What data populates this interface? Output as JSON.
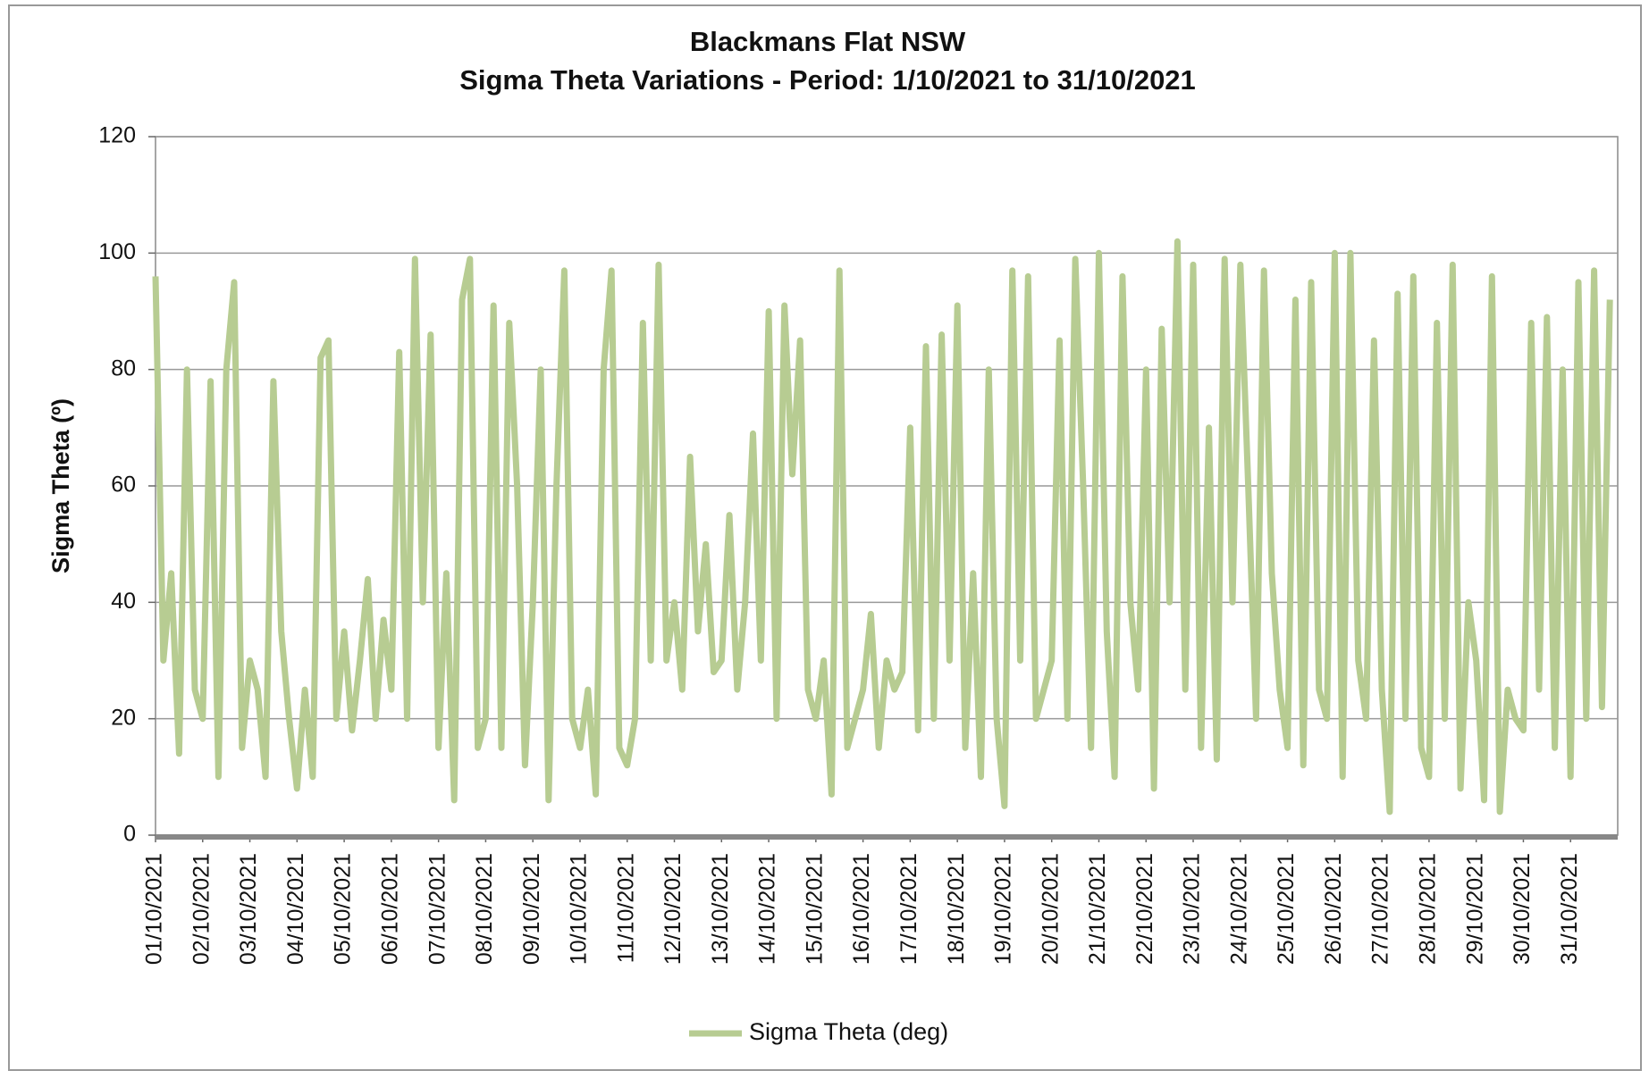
{
  "chart_data": {
    "type": "line",
    "title": "Blackmans Flat NSW",
    "subtitle": "Sigma Theta Variations - Period: 1/10/2021 to 31/10/2021",
    "y_label": "Sigma Theta (º)",
    "categories": [
      "01/10/2021",
      null,
      null,
      null,
      null,
      null,
      "02/10/2021",
      null,
      null,
      null,
      null,
      null,
      "03/10/2021",
      null,
      null,
      null,
      null,
      null,
      "04/10/2021",
      null,
      null,
      null,
      null,
      null,
      "05/10/2021",
      null,
      null,
      null,
      null,
      null,
      "06/10/2021",
      null,
      null,
      null,
      null,
      null,
      "07/10/2021",
      null,
      null,
      null,
      null,
      null,
      "08/10/2021",
      null,
      null,
      null,
      null,
      null,
      "09/10/2021",
      null,
      null,
      null,
      null,
      null,
      "10/10/2021",
      null,
      null,
      null,
      null,
      null,
      "11/10/2021",
      null,
      null,
      null,
      null,
      null,
      "12/10/2021",
      null,
      null,
      null,
      null,
      null,
      "13/10/2021",
      null,
      null,
      null,
      null,
      null,
      "14/10/2021",
      null,
      null,
      null,
      null,
      null,
      "15/10/2021",
      null,
      null,
      null,
      null,
      null,
      "16/10/2021",
      null,
      null,
      null,
      null,
      null,
      "17/10/2021",
      null,
      null,
      null,
      null,
      null,
      "18/10/2021",
      null,
      null,
      null,
      null,
      null,
      "19/10/2021",
      null,
      null,
      null,
      null,
      null,
      "20/10/2021",
      null,
      null,
      null,
      null,
      null,
      "21/10/2021",
      null,
      null,
      null,
      null,
      null,
      "22/10/2021",
      null,
      null,
      null,
      null,
      null,
      "23/10/2021",
      null,
      null,
      null,
      null,
      null,
      "24/10/2021",
      null,
      null,
      null,
      null,
      null,
      "25/10/2021",
      null,
      null,
      null,
      null,
      null,
      "26/10/2021",
      null,
      null,
      null,
      null,
      null,
      "27/10/2021",
      null,
      null,
      null,
      null,
      null,
      "28/10/2021",
      null,
      null,
      null,
      null,
      null,
      "29/10/2021",
      null,
      null,
      null,
      null,
      null,
      "30/10/2021",
      null,
      null,
      null,
      null,
      null,
      "31/10/2021",
      null,
      null,
      null,
      null,
      null
    ],
    "series": [
      {
        "name": "Sigma Theta (deg)",
        "color": "#b7cc92",
        "values": [
          96,
          30,
          45,
          14,
          80,
          25,
          20,
          78,
          10,
          80,
          95,
          15,
          30,
          25,
          10,
          78,
          35,
          20,
          8,
          25,
          10,
          82,
          85,
          20,
          35,
          18,
          30,
          44,
          20,
          37,
          25,
          83,
          20,
          99,
          40,
          86,
          15,
          45,
          6,
          92,
          99,
          15,
          20,
          91,
          15,
          88,
          60,
          12,
          40,
          80,
          6,
          60,
          97,
          20,
          15,
          25,
          7,
          80,
          97,
          15,
          12,
          20,
          88,
          30,
          98,
          30,
          40,
          25,
          65,
          35,
          50,
          28,
          30,
          55,
          25,
          40,
          69,
          30,
          90,
          20,
          91,
          62,
          85,
          25,
          20,
          30,
          7,
          97,
          15,
          20,
          25,
          38,
          15,
          30,
          25,
          28,
          70,
          18,
          84,
          20,
          86,
          30,
          91,
          15,
          45,
          10,
          80,
          20,
          5,
          97,
          30,
          96,
          20,
          25,
          30,
          85,
          20,
          99,
          60,
          15,
          100,
          35,
          10,
          96,
          40,
          25,
          80,
          8,
          87,
          40,
          102,
          25,
          98,
          15,
          70,
          13,
          99,
          40,
          98,
          60,
          20,
          97,
          45,
          25,
          15,
          92,
          12,
          95,
          25,
          20,
          100,
          10,
          100,
          30,
          20,
          85,
          25,
          4,
          93,
          20,
          96,
          15,
          10,
          88,
          20,
          98,
          8,
          40,
          30,
          6,
          96,
          4,
          25,
          20,
          18,
          88,
          25,
          89,
          15,
          80,
          10,
          95,
          20,
          97,
          22,
          92
        ]
      }
    ],
    "ylim": [
      0,
      120
    ],
    "yticks": [
      0,
      20,
      40,
      60,
      80,
      100,
      120
    ],
    "grid": true,
    "legend": "bottom"
  }
}
